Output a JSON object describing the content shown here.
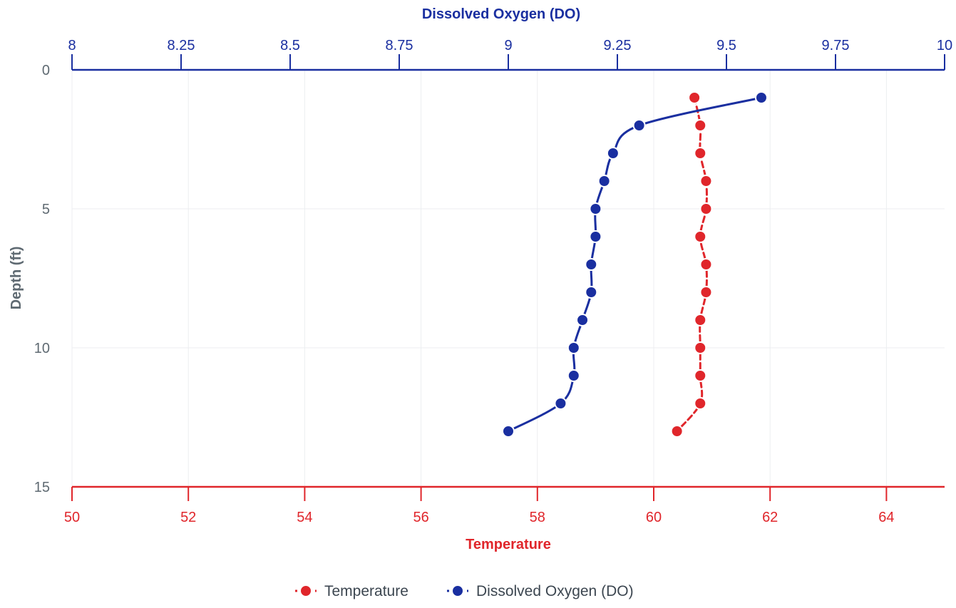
{
  "chart_data": {
    "type": "line",
    "orientation": "depth-profile",
    "top_axis": {
      "title": "Dissolved Oxygen (DO)",
      "range": [
        8,
        10
      ],
      "ticks": [
        "8",
        "8.25",
        "8.5",
        "8.75",
        "9",
        "9.25",
        "9.5",
        "9.75",
        "10"
      ],
      "tick_values": [
        8,
        8.25,
        8.5,
        8.75,
        9,
        9.25,
        9.5,
        9.75,
        10
      ],
      "color": "#1a2fa0"
    },
    "bottom_axis": {
      "title": "Temperature",
      "range": [
        50,
        65
      ],
      "ticks": [
        "50",
        "52",
        "54",
        "56",
        "58",
        "60",
        "62",
        "64"
      ],
      "tick_values": [
        50,
        52,
        54,
        56,
        58,
        60,
        62,
        64
      ],
      "color": "#e0262b"
    },
    "left_axis": {
      "title": "Depth (ft)",
      "range": [
        0,
        15
      ],
      "ticks": [
        "0",
        "5",
        "10",
        "15"
      ],
      "tick_values": [
        0,
        5,
        10,
        15
      ],
      "reversed": true
    },
    "grid": true,
    "legend_position": "bottom-center",
    "series": [
      {
        "name": "Temperature",
        "axis": "bottom",
        "color": "#e0262b",
        "depth": [
          1,
          2,
          3,
          4,
          5,
          6,
          7,
          8,
          9,
          10,
          11,
          12,
          13
        ],
        "values": [
          60.7,
          60.8,
          60.8,
          60.9,
          60.9,
          60.8,
          60.9,
          60.9,
          60.8,
          60.8,
          60.8,
          60.8,
          60.4
        ]
      },
      {
        "name": "Dissolved Oxygen (DO)",
        "axis": "top",
        "color": "#1a2fa0",
        "depth": [
          1,
          2,
          3,
          4,
          5,
          6,
          7,
          8,
          9,
          10,
          11,
          12,
          13
        ],
        "values": [
          9.58,
          9.3,
          9.24,
          9.22,
          9.2,
          9.2,
          9.19,
          9.19,
          9.17,
          9.15,
          9.15,
          9.12,
          9.0
        ]
      }
    ]
  }
}
